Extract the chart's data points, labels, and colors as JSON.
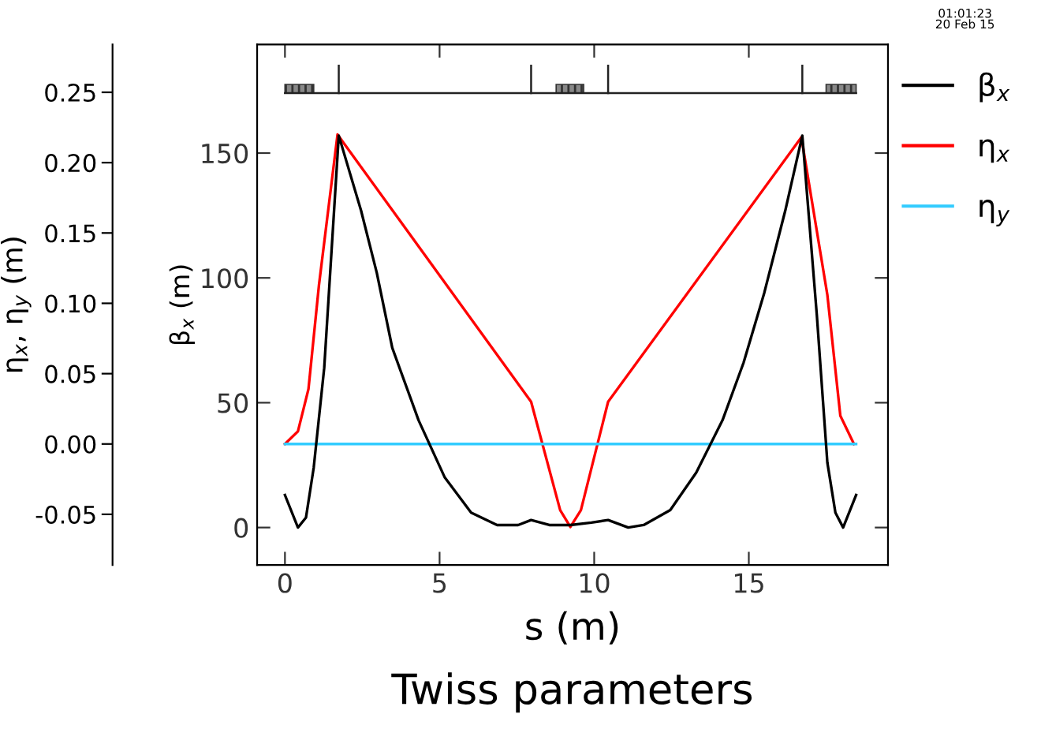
{
  "chart_data": {
    "type": "line",
    "title": "Twiss parameters",
    "xlabel": "s (m)",
    "ylabel": "β$_{x}$ (m)",
    "y2label": "η$_{x}$, η$_{y}$ (m)",
    "annotations": [
      "01:01:23\n20 Feb 15"
    ],
    "legend": "right",
    "xlim": [
      -0.9,
      19.5
    ],
    "xticks": [
      0,
      5,
      10,
      15
    ],
    "ylim": [
      -15,
      193.5
    ],
    "yticks": [
      0,
      50,
      100,
      150
    ],
    "y2lim": [
      -0.086,
      0.284
    ],
    "y2ticks": [
      -0.05,
      {
        "value": 0,
        "label": "0.00"
      },
      0.05,
      {
        "value": 0.1,
        "label": "0.10"
      },
      0.15,
      {
        "value": 0.2,
        "label": "0.20"
      },
      0.25
    ],
    "series": [
      {
        "name": "β$_{x}$",
        "color": "#000000",
        "axis": "y",
        "x": [
          0,
          0.42,
          0.68,
          0.93,
          1.27,
          1.74,
          2.46,
          2.97,
          3.47,
          4.32,
          5.17,
          6.02,
          6.86,
          7.54,
          7.96,
          8.55,
          9.23,
          9.91,
          10.45,
          11.1,
          11.6,
          12.46,
          13.3,
          14.15,
          14.83,
          15.5,
          16.18,
          16.73,
          17.2,
          17.54,
          17.8,
          18.05,
          18.47
        ],
        "values": [
          13,
          0,
          4,
          24,
          64,
          157,
          127,
          102,
          72,
          43,
          20,
          6,
          1,
          1,
          3,
          1,
          1,
          2,
          3,
          0,
          1,
          7,
          22,
          43,
          66,
          94,
          127,
          157,
          85,
          26,
          6,
          0,
          13
        ]
      },
      {
        "name": "η$_{x}$",
        "color": "#ff0000",
        "axis": "y2",
        "x": [
          0,
          0.42,
          0.76,
          1.1,
          1.7,
          7.96,
          8.9,
          9.23,
          9.57,
          10.45,
          16.7,
          17.54,
          17.96,
          18.4
        ],
        "values": [
          0,
          0.009,
          0.039,
          0.113,
          0.22,
          0.03,
          -0.047,
          -0.059,
          -0.047,
          0.03,
          0.218,
          0.106,
          0.02,
          0
        ]
      },
      {
        "name": "η$_{y}$",
        "color": "#33ccff",
        "axis": "y2",
        "x": [
          0,
          18.47
        ],
        "values": [
          0,
          0
        ]
      }
    ]
  }
}
